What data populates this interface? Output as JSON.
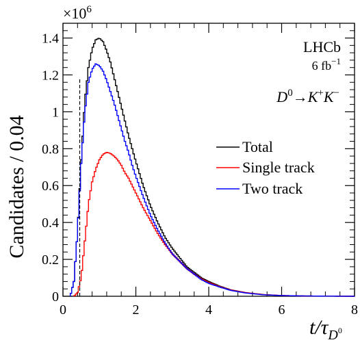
{
  "chart_data": {
    "type": "line",
    "xlabel": "t/τ",
    "xlabel_sub": "D",
    "xlabel_subsup": "0",
    "ylabel": "Candidates / 0.04",
    "y_multiplier": "×10",
    "y_multiplier_exp": "6",
    "xlim": [
      0,
      8
    ],
    "ylim": [
      0,
      1.48
    ],
    "x_ticks": [
      0,
      2,
      4,
      6,
      8
    ],
    "y_ticks": [
      0,
      0.2,
      0.4,
      0.6,
      0.8,
      1,
      1.2,
      1.4
    ],
    "x_tick_labels": [
      "0",
      "2",
      "4",
      "6",
      "8"
    ],
    "y_tick_labels": [
      "0",
      "0.2",
      "0.4",
      "0.6",
      "0.8",
      "1",
      "1.2",
      "1.4"
    ],
    "grid": false,
    "legend_position": "right",
    "cut_line_x": 0.46,
    "cut_line_y_top": 1.18,
    "annotations": {
      "experiment": "LHCb",
      "luminosity": "6 fb",
      "luminosity_exp": "−1",
      "decay": {
        "d": "D",
        "d_sup": "0",
        "arrow": "→",
        "k1": "K",
        "k1_sup": "+",
        "k2": "K",
        "k2_sup": "−"
      }
    },
    "series": [
      {
        "name": "Total",
        "color": "#000000",
        "x": [
          0.2,
          0.3,
          0.4,
          0.5,
          0.6,
          0.7,
          0.8,
          0.9,
          1.0,
          1.1,
          1.2,
          1.3,
          1.4,
          1.5,
          1.6,
          1.7,
          1.8,
          1.9,
          2.0,
          2.2,
          2.4,
          2.6,
          2.8,
          3.0,
          3.2,
          3.4,
          3.6,
          3.8,
          4.0,
          4.3,
          4.6,
          5.0,
          5.5,
          6.0,
          6.5,
          7.0,
          7.5,
          8.0
        ],
        "y": [
          0.0,
          0.08,
          0.35,
          0.74,
          1.06,
          1.24,
          1.34,
          1.39,
          1.4,
          1.38,
          1.33,
          1.27,
          1.19,
          1.11,
          1.03,
          0.95,
          0.87,
          0.8,
          0.73,
          0.6,
          0.49,
          0.4,
          0.32,
          0.26,
          0.21,
          0.16,
          0.13,
          0.1,
          0.08,
          0.055,
          0.035,
          0.02,
          0.009,
          0.004,
          0.002,
          0.001,
          0.0005,
          0.0
        ]
      },
      {
        "name": "Single track",
        "color": "#ff0000",
        "x": [
          0.3,
          0.4,
          0.5,
          0.6,
          0.7,
          0.8,
          0.9,
          1.0,
          1.1,
          1.2,
          1.3,
          1.4,
          1.5,
          1.6,
          1.7,
          1.8,
          1.9,
          2.0,
          2.2,
          2.4,
          2.6,
          2.8,
          3.0,
          3.2,
          3.4,
          3.6,
          3.8,
          4.0,
          4.3,
          4.6,
          5.0,
          5.5,
          6.0,
          6.5,
          7.0,
          7.5,
          8.0
        ],
        "y": [
          0.0,
          0.02,
          0.1,
          0.3,
          0.5,
          0.62,
          0.69,
          0.74,
          0.77,
          0.78,
          0.775,
          0.76,
          0.74,
          0.71,
          0.67,
          0.64,
          0.6,
          0.56,
          0.48,
          0.41,
          0.34,
          0.28,
          0.23,
          0.19,
          0.15,
          0.12,
          0.095,
          0.075,
          0.052,
          0.034,
          0.02,
          0.009,
          0.004,
          0.002,
          0.001,
          0.0005,
          0.0
        ]
      },
      {
        "name": "Two track",
        "color": "#0000ff",
        "x": [
          0.2,
          0.3,
          0.4,
          0.5,
          0.6,
          0.7,
          0.8,
          0.9,
          1.0,
          1.1,
          1.2,
          1.3,
          1.4,
          1.5,
          1.6,
          1.7,
          1.8,
          1.9,
          2.0,
          2.2,
          2.4,
          2.6,
          2.8,
          3.0,
          3.2,
          3.4,
          3.6,
          3.8,
          4.0,
          4.3,
          4.6,
          5.0,
          5.5,
          6.0,
          6.5,
          7.0,
          7.5,
          8.0
        ],
        "y": [
          0.0,
          0.08,
          0.35,
          0.72,
          1.0,
          1.16,
          1.23,
          1.26,
          1.25,
          1.22,
          1.17,
          1.11,
          1.05,
          0.98,
          0.91,
          0.84,
          0.78,
          0.71,
          0.65,
          0.54,
          0.44,
          0.36,
          0.29,
          0.23,
          0.19,
          0.15,
          0.12,
          0.09,
          0.07,
          0.05,
          0.032,
          0.018,
          0.008,
          0.004,
          0.002,
          0.001,
          0.0005,
          0.0
        ]
      }
    ]
  }
}
